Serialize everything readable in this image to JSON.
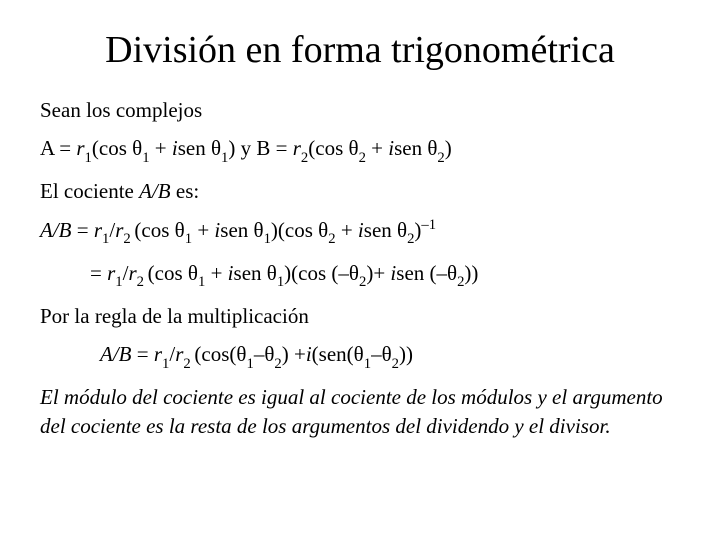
{
  "title": "División en forma trigonométrica",
  "intro": "Sean los complejos",
  "defA_pre": "A = ",
  "defA_post": ") y B = ",
  "quotient_label": "El cociente ",
  "quotient_suffix": " es:",
  "rule_label": "Por la regla de la multiplicación",
  "conclusion": "El módulo del cociente es igual al cociente de los módulos y el argumento del cociente es la resta de los argumentos del dividendo y el divisor.",
  "sym": {
    "r": "r",
    "theta": "θ",
    "i": "i",
    "cos": "cos",
    "sen": "sen",
    "AB": "A/B",
    "eq": " = ",
    "plus": " + ",
    "minus": "– ",
    "neg": "–",
    "lp": "(",
    "rp": ")",
    "y": " y "
  },
  "style": {
    "background": "#ffffff",
    "text_color": "#000000",
    "title_fontsize": 38,
    "body_fontsize": 21,
    "font_family": "Times New Roman"
  }
}
